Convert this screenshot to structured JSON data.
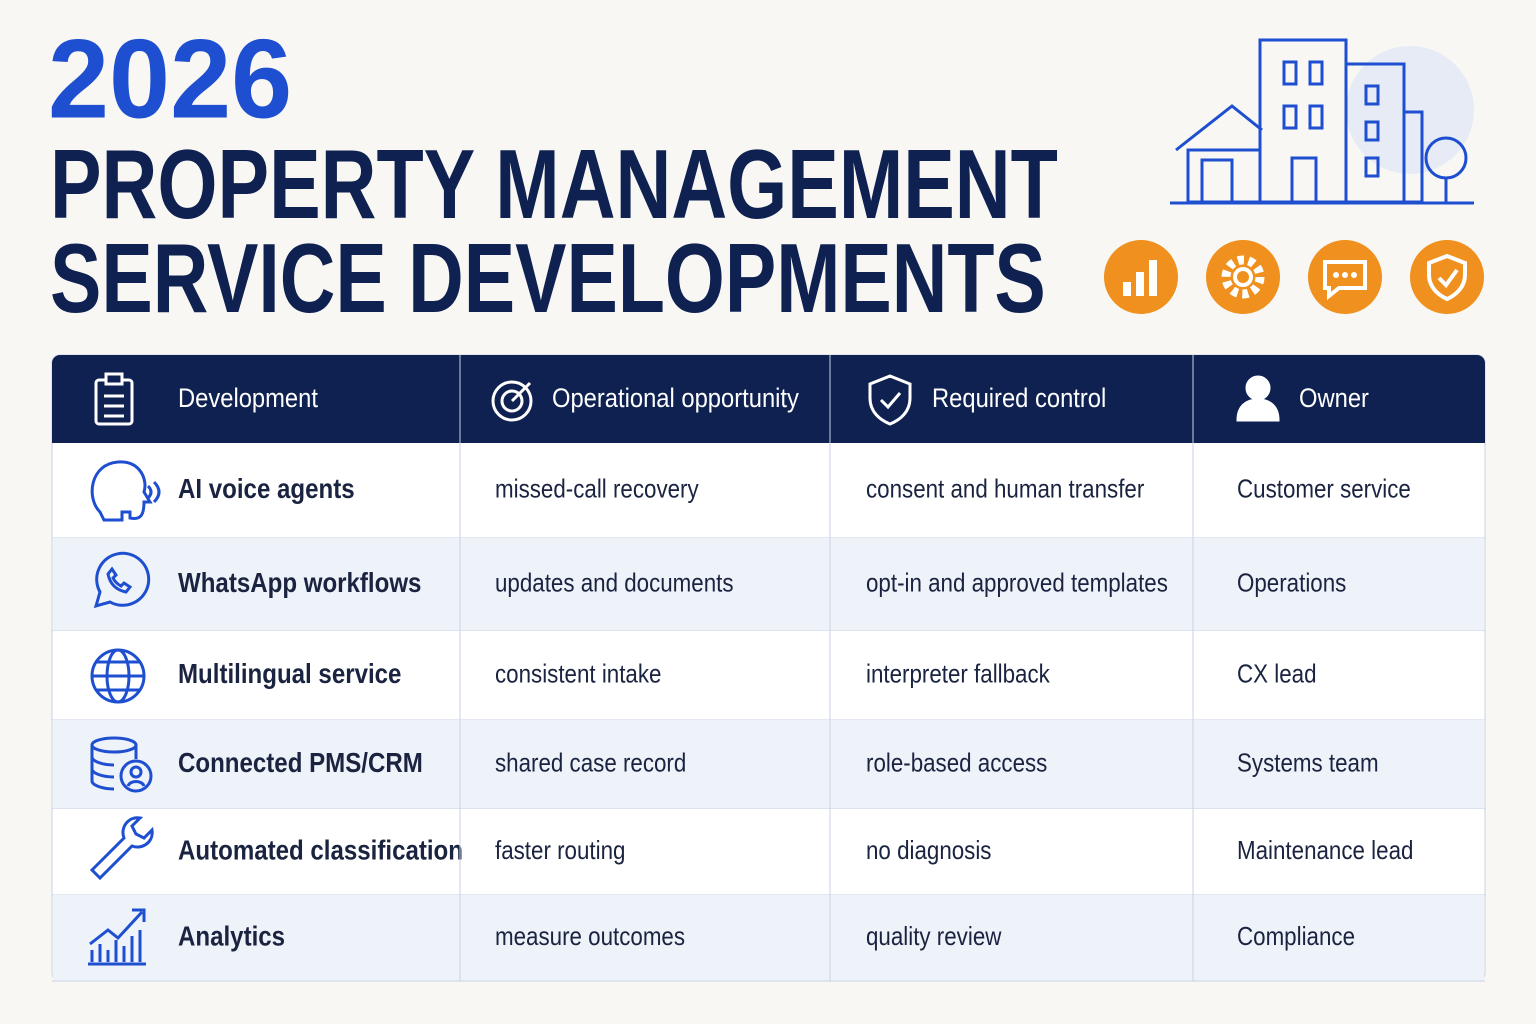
{
  "header": {
    "year": "2026",
    "title_line1": "PROPERTY MANAGEMENT",
    "title_line2": "SERVICE DEVELOPMENTS"
  },
  "table": {
    "columns": [
      "Development",
      "Operational opportunity",
      "Required control",
      "Owner"
    ],
    "rows": [
      [
        "AI voice agents",
        "missed-call recovery",
        "consent and human transfer",
        "Customer service"
      ],
      [
        "WhatsApp workflows",
        "updates and documents",
        "opt-in and approved templates",
        "Operations"
      ],
      [
        "Multilingual service",
        "consistent intake",
        "interpreter fallback",
        "CX lead"
      ],
      [
        "Connected PMS/CRM",
        "shared case record",
        "role-based access",
        "Systems team"
      ],
      [
        "Automated classification",
        "faster routing",
        "no diagnosis",
        "Maintenance lead"
      ],
      [
        "Analytics",
        "measure outcomes",
        "quality review",
        "Compliance"
      ]
    ]
  }
}
